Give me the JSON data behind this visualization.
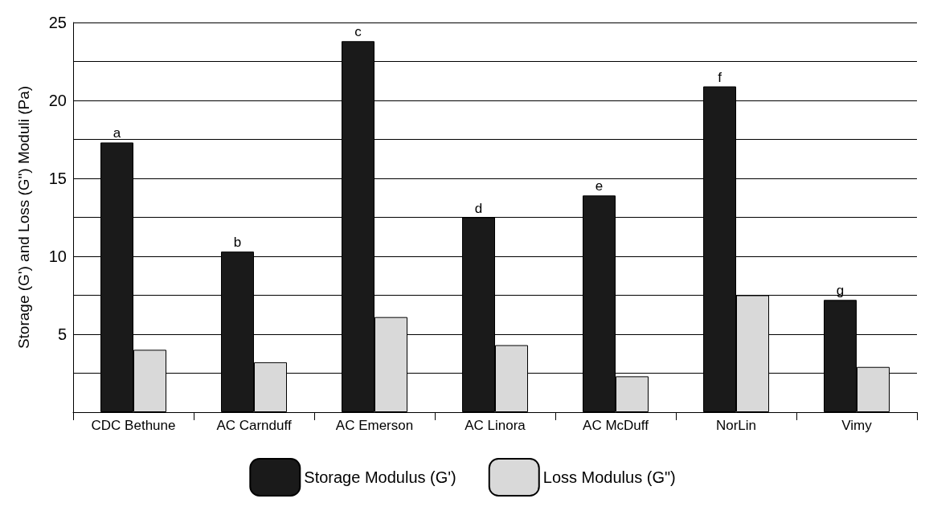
{
  "chart_data": {
    "type": "bar",
    "ylabel": "Storage (G') and Loss (G\") Moduli (Pa)",
    "categories": [
      "CDC Bethune",
      "AC Carnduff",
      "AC Emerson",
      "AC Linora",
      "AC McDuff",
      "NorLin",
      "Vimy"
    ],
    "series": [
      {
        "name": "Storage Modulus (G')",
        "color": "#1a1a1a",
        "values": [
          17.3,
          10.3,
          23.8,
          12.5,
          13.9,
          20.9,
          7.2
        ]
      },
      {
        "name": "Loss Modulus (G\")",
        "color": "#d9d9d9",
        "values": [
          4.0,
          3.2,
          6.1,
          4.3,
          2.3,
          7.5,
          2.9
        ]
      }
    ],
    "ylim": [
      0,
      25
    ],
    "yticks": [
      {
        "value": 0,
        "label": null
      },
      {
        "value": 2.5,
        "label": null
      },
      5,
      {
        "value": 7.5,
        "label": null
      },
      10,
      {
        "value": 12.5,
        "label": null
      },
      15,
      {
        "value": 17.5,
        "label": null
      },
      20,
      {
        "value": 22.5,
        "label": null
      },
      25
    ],
    "annotations": [
      {
        "text": "a",
        "x": "CDC Bethune",
        "y": 17.3
      },
      {
        "text": "b",
        "x": "AC Carnduff",
        "y": 10.3
      },
      {
        "text": "c",
        "x": "AC Emerson",
        "y": 23.8
      },
      {
        "text": "d",
        "x": "AC Linora",
        "y": 12.5
      },
      {
        "text": "e",
        "x": "AC McDuff",
        "y": 13.9
      },
      {
        "text": "f",
        "x": "NorLin",
        "y": 20.9
      },
      {
        "text": "g",
        "x": "Vimy",
        "y": 7.2
      }
    ],
    "grid": "y",
    "legend": "bottom"
  }
}
